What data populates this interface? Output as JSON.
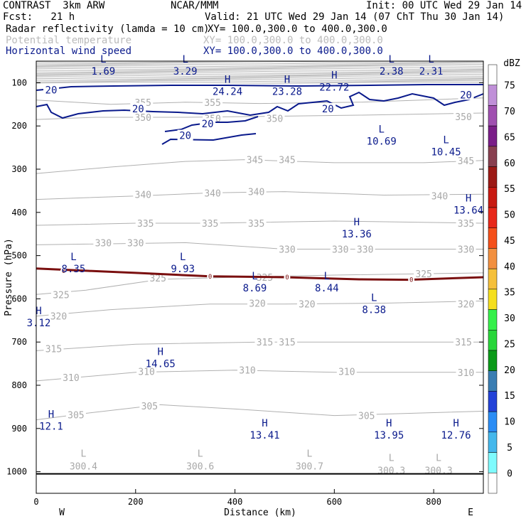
{
  "header": {
    "title_left": "CONTRAST  3km ARW",
    "title_center": "NCAR/MMM",
    "init": "Init: 00 UTC Wed 29 Jan 14",
    "fcst": "Fcst:   21 h",
    "valid": "Valid: 21 UTC Wed 29 Jan 14 (07 ChT Thu 30 Jan 14)",
    "fields": [
      {
        "name": "Radar reflectivity (lamda = 10 cm)",
        "xy": "XY= 100.0,300.0 to 400.0,300.0",
        "color": "#000000"
      },
      {
        "name": "Potential temperature",
        "xy": "XY= 100.0,300.0 to 400.0,300.0",
        "color": "#bbbbbb"
      },
      {
        "name": "Horizontal wind speed",
        "xy": "XY= 100.0,300.0 to 400.0,300.0",
        "color": "#0a1a8c"
      }
    ]
  },
  "chart_data": {
    "type": "cross-section contour",
    "xlabel": "Distance (km)",
    "ylabel": "Pressure (hPa)",
    "xlim": [
      0,
      900
    ],
    "ylim": [
      1050,
      50
    ],
    "x_ticks": [
      "0",
      "200",
      "400",
      "600",
      "800"
    ],
    "y_ticks": [
      "100",
      "200",
      "300",
      "400",
      "500",
      "600",
      "700",
      "800",
      "900",
      "1000"
    ],
    "direction_labels": {
      "left": "W",
      "right": "E"
    },
    "theta_contours": [
      {
        "value": "355",
        "p": [
          [
            0,
            140
          ],
          [
            150,
            150
          ],
          [
            300,
            145
          ],
          [
            450,
            148
          ],
          [
            650,
            145
          ],
          [
            900,
            135
          ]
        ],
        "labels": [
          [
            215,
            145
          ],
          [
            355,
            145
          ]
        ]
      },
      {
        "value": "350",
        "p": [
          [
            0,
            185
          ],
          [
            120,
            180
          ],
          [
            300,
            180
          ],
          [
            450,
            178
          ],
          [
            650,
            175
          ],
          [
            900,
            170
          ]
        ],
        "labels": [
          [
            215,
            180
          ],
          [
            355,
            182
          ],
          [
            480,
            182
          ],
          [
            860,
            178
          ]
        ]
      },
      {
        "value": "345",
        "p": [
          [
            0,
            310
          ],
          [
            150,
            295
          ],
          [
            300,
            282
          ],
          [
            420,
            278
          ],
          [
            600,
            285
          ],
          [
            780,
            285
          ],
          [
            900,
            280
          ]
        ],
        "labels": [
          [
            440,
            278
          ],
          [
            505,
            278
          ],
          [
            865,
            280
          ]
        ]
      },
      {
        "value": "340",
        "p": [
          [
            0,
            370
          ],
          [
            200,
            362
          ],
          [
            350,
            355
          ],
          [
            500,
            352
          ],
          [
            700,
            360
          ],
          [
            900,
            358
          ]
        ],
        "labels": [
          [
            215,
            358
          ],
          [
            355,
            355
          ],
          [
            443,
            352
          ],
          [
            812,
            362
          ]
        ]
      },
      {
        "value": "335",
        "p": [
          [
            0,
            430
          ],
          [
            200,
            425
          ],
          [
            350,
            425
          ],
          [
            600,
            420
          ],
          [
            900,
            425
          ]
        ],
        "labels": [
          [
            220,
            425
          ],
          [
            350,
            425
          ],
          [
            443,
            425
          ],
          [
            865,
            425
          ]
        ]
      },
      {
        "value": "330",
        "p": [
          [
            0,
            475
          ],
          [
            300,
            470
          ],
          [
            500,
            485
          ],
          [
            900,
            485
          ]
        ],
        "labels": [
          [
            135,
            470
          ],
          [
            200,
            470
          ],
          [
            505,
            485
          ],
          [
            612,
            485
          ],
          [
            662,
            485
          ],
          [
            865,
            485
          ]
        ]
      },
      {
        "value": "325",
        "p": [
          [
            0,
            590
          ],
          [
            100,
            580
          ],
          [
            250,
            555
          ],
          [
            400,
            550
          ],
          [
            600,
            545
          ],
          [
            900,
            540
          ]
        ],
        "labels": [
          [
            50,
            590
          ],
          [
            245,
            552
          ],
          [
            460,
            550
          ],
          [
            780,
            542
          ]
        ]
      },
      {
        "value": "320",
        "p": [
          [
            0,
            640
          ],
          [
            150,
            625
          ],
          [
            350,
            612
          ],
          [
            500,
            612
          ],
          [
            700,
            610
          ],
          [
            900,
            605
          ]
        ],
        "labels": [
          [
            45,
            640
          ],
          [
            445,
            610
          ],
          [
            545,
            612
          ],
          [
            865,
            612
          ]
        ]
      },
      {
        "value": "315",
        "p": [
          [
            0,
            720
          ],
          [
            200,
            705
          ],
          [
            450,
            700
          ],
          [
            900,
            700
          ]
        ],
        "labels": [
          [
            35,
            715
          ],
          [
            460,
            700
          ],
          [
            505,
            700
          ],
          [
            860,
            700
          ]
        ]
      },
      {
        "value": "310",
        "p": [
          [
            0,
            790
          ],
          [
            200,
            770
          ],
          [
            400,
            765
          ],
          [
            600,
            770
          ],
          [
            900,
            770
          ]
        ],
        "labels": [
          [
            70,
            782
          ],
          [
            222,
            768
          ],
          [
            425,
            765
          ],
          [
            625,
            768
          ],
          [
            865,
            770
          ]
        ]
      },
      {
        "value": "305",
        "p": [
          [
            0,
            880
          ],
          [
            100,
            865
          ],
          [
            250,
            845
          ],
          [
            400,
            855
          ],
          [
            600,
            870
          ],
          [
            900,
            860
          ]
        ],
        "labels": [
          [
            80,
            868
          ],
          [
            228,
            848
          ],
          [
            665,
            870
          ]
        ]
      }
    ],
    "theta_extrema": [
      {
        "type": "L",
        "value": "300.4",
        "x": 95,
        "p": 975
      },
      {
        "type": "L",
        "value": "300.6",
        "x": 330,
        "p": 975
      },
      {
        "type": "L",
        "value": "300.7",
        "x": 550,
        "p": 975
      },
      {
        "type": "L",
        "value": "300.3",
        "x": 715,
        "p": 985
      },
      {
        "type": "L",
        "value": "300.3",
        "x": 810,
        "p": 985
      }
    ],
    "wind_extrema": [
      {
        "type": "L",
        "value": "1.69",
        "x": 135,
        "p": 63
      },
      {
        "type": "L",
        "value": "3.29",
        "x": 300,
        "p": 63
      },
      {
        "type": "L",
        "value": "2.38",
        "x": 715,
        "p": 63
      },
      {
        "type": "L",
        "value": "2.31",
        "x": 795,
        "p": 63
      },
      {
        "type": "H",
        "value": "24.24",
        "x": 385,
        "p": 110
      },
      {
        "type": "H",
        "value": "23.28",
        "x": 505,
        "p": 110
      },
      {
        "type": "H",
        "value": "22.72",
        "x": 600,
        "p": 100
      },
      {
        "type": "L",
        "value": "10.69",
        "x": 695,
        "p": 225
      },
      {
        "type": "L",
        "value": "10.45",
        "x": 825,
        "p": 250
      },
      {
        "type": "H",
        "value": "13.64",
        "x": 870,
        "p": 385
      },
      {
        "type": "H",
        "value": "13.36",
        "x": 645,
        "p": 440
      },
      {
        "type": "L",
        "value": "8.35",
        "x": 75,
        "p": 520
      },
      {
        "type": "L",
        "value": "9.93",
        "x": 295,
        "p": 520
      },
      {
        "type": "L",
        "value": "8.69",
        "x": 440,
        "p": 565
      },
      {
        "type": "L",
        "value": "8.44",
        "x": 585,
        "p": 565
      },
      {
        "type": "L",
        "value": "8.38",
        "x": 680,
        "p": 615
      },
      {
        "type": "H",
        "value": "3.12",
        "x": 5,
        "p": 645
      },
      {
        "type": "H",
        "value": "14.65",
        "x": 250,
        "p": 740
      },
      {
        "type": "H",
        "value": "12.1",
        "x": 30,
        "p": 885
      },
      {
        "type": "H",
        "value": "13.41",
        "x": 460,
        "p": 905
      },
      {
        "type": "H",
        "value": "13.95",
        "x": 710,
        "p": 905
      },
      {
        "type": "H",
        "value": "12.76",
        "x": 845,
        "p": 905
      }
    ],
    "wind_contour_labels": [
      {
        "value": "20",
        "x": 30,
        "p": 117
      },
      {
        "value": "20",
        "x": 205,
        "p": 160
      },
      {
        "value": "20",
        "x": 345,
        "p": 195
      },
      {
        "value": "20",
        "x": 300,
        "p": 222
      },
      {
        "value": "20",
        "x": 587,
        "p": 160
      },
      {
        "value": "20",
        "x": 865,
        "p": 128
      }
    ],
    "reflectivity_contour": {
      "value": "0",
      "points": [
        [
          0,
          530
        ],
        [
          100,
          535
        ],
        [
          200,
          540
        ],
        [
          350,
          548
        ],
        [
          500,
          550
        ],
        [
          650,
          555
        ],
        [
          750,
          556
        ],
        [
          900,
          550
        ]
      ],
      "labels": [
        [
          55,
          535
        ],
        [
          350,
          548
        ],
        [
          505,
          550
        ],
        [
          755,
          556
        ]
      ]
    },
    "colorbar": {
      "title": "dBZ",
      "levels": [
        "0",
        "5",
        "10",
        "15",
        "20",
        "25",
        "30",
        "35",
        "40",
        "45",
        "50",
        "55",
        "60",
        "65",
        "70",
        "75"
      ],
      "colors": [
        "#ffffff",
        "#7ffbfd",
        "#45b8ec",
        "#2b8df5",
        "#2342d8",
        "#3a7db2",
        "#0a9a18",
        "#28d63a",
        "#35f04a",
        "#f5df1e",
        "#f5c03a",
        "#f29040",
        "#f5501a",
        "#e8281a",
        "#c81a12",
        "#9c1a16",
        "#884050",
        "#7a1e88",
        "#a050b0",
        "#c090d8",
        "#ffffff"
      ]
    }
  }
}
